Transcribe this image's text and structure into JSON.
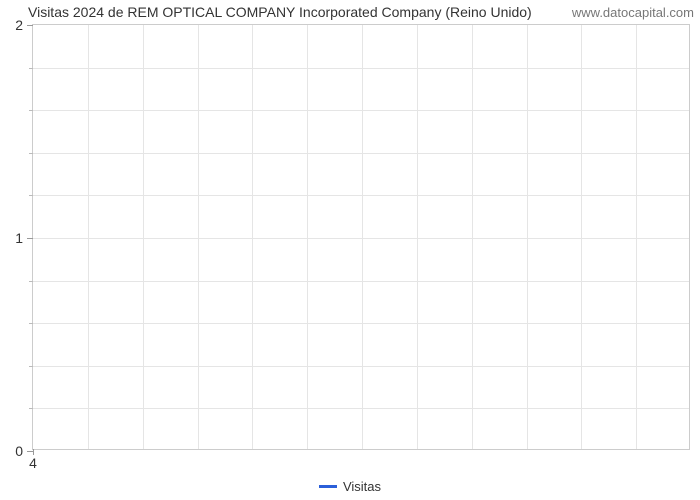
{
  "chart": {
    "type": "line",
    "title": "Visitas 2024 de REM OPTICAL COMPANY Incorporated Company (Reino Unido)",
    "watermark": "www.datocapital.com",
    "background_color": "#ffffff",
    "border_color": "#cccccc",
    "grid_color": "#e5e5e5",
    "axis_color": "#999999",
    "text_color": "#333333",
    "title_fontsize": 14,
    "label_fontsize": 14,
    "legend_fontsize": 13,
    "y_axis": {
      "min": 0,
      "max": 2,
      "major_ticks": [
        0,
        1,
        2
      ],
      "minor_tick_step": 0.2
    },
    "x_axis": {
      "visible_tick_labels": [
        "4"
      ],
      "major_tick_count": 12
    },
    "series": [
      {
        "name": "Visitas",
        "color": "#2b5fd9",
        "line_width": 3,
        "data": []
      }
    ],
    "legend": {
      "items": [
        "Visitas"
      ],
      "swatch_color": "#2b5fd9"
    }
  }
}
